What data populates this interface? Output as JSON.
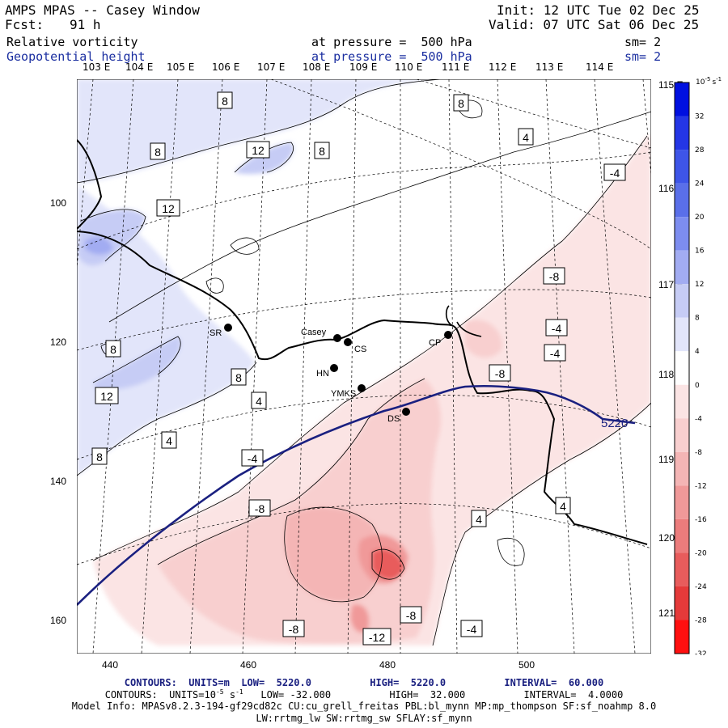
{
  "header": {
    "title": "AMPS MPAS -- Casey Window",
    "init": "Init: 12 UTC Tue 02 Dec 25",
    "fcst_label": "Fcst:",
    "fcst_value": "91 h",
    "valid": "Valid: 07 UTC Sat 06 Dec 25",
    "field1": "Relative vorticity",
    "field1_level": "at pressure =  500 hPa",
    "field1_sm": "sm= 2",
    "field2": "Geopotential height",
    "field2_level": "at pressure =  500 hPa",
    "field2_sm": "sm= 2"
  },
  "top_lon_labels": [
    "103 E",
    "104 E",
    "105 E",
    "106 E",
    "107 E",
    "108 E",
    "109 E",
    "110 E",
    "111 E",
    "112 E",
    "113 E",
    "114 E"
  ],
  "right_lon_labels": [
    "115 E",
    "116 E",
    "117 E",
    "118 E",
    "119 E",
    "120 E",
    "121 E"
  ],
  "x_axis_ticks": [
    "440",
    "460",
    "480",
    "500"
  ],
  "y_axis_ticks": [
    "100",
    "120",
    "140",
    "160"
  ],
  "stations": [
    {
      "name": "SR"
    },
    {
      "name": "Casey"
    },
    {
      "name": "CS"
    },
    {
      "name": "HN"
    },
    {
      "name": "YMKS"
    },
    {
      "name": "DS"
    },
    {
      "name": "CP"
    }
  ],
  "contour_labels": {
    "positive_8": "8",
    "positive_12": "12",
    "positive_4": "4",
    "negative_4": "-4",
    "negative_8": "-8",
    "negative_12": "-12",
    "height": "5220"
  },
  "colorbar": {
    "unit": "10",
    "unit_exp": "-5",
    "unit_suffix": "s",
    "unit_suffix_exp": "-1",
    "levels": [
      "32",
      "28",
      "24",
      "20",
      "16",
      "12",
      "8",
      "4",
      "0",
      "-4",
      "-8",
      "-12",
      "-16",
      "-20",
      "-24",
      "-28",
      "-32"
    ],
    "positive_colors": [
      "#0010e0",
      "#2436e6",
      "#3e55e8",
      "#5a6fe9",
      "#7d8df0",
      "#a2acf2",
      "#c6ccf5",
      "#e2e5fa"
    ],
    "negative_colors": [
      "#fbe4e4",
      "#f8cfcf",
      "#f4b5b5",
      "#f09999",
      "#ec7c7c",
      "#e85c5c",
      "#e53a3a",
      "#ff1010"
    ]
  },
  "footer": {
    "contours1": "CONTOURS:  UNITS=m  LOW=  5220.0          HIGH=  5220.0          INTERVAL=  60.000",
    "contours2_pre": "CONTOURS:  UNITS=10",
    "contours2_exp1": "-5",
    "contours2_s": " s",
    "contours2_exp2": "-1",
    "contours2_post": "   LOW= -32.000          HIGH=  32.000          INTERVAL=  4.0000",
    "model_info": "Model Info: MPASv8.2.3-194-gf29cd82c CU:cu_grell_freitas PBL:bl_mynn MP:mp_thompson SF:sf_noahmp 8.0",
    "model_info2": "LW:rrtmg_lw SW:rrtmg_sw SFLAY:sf_mynn"
  }
}
